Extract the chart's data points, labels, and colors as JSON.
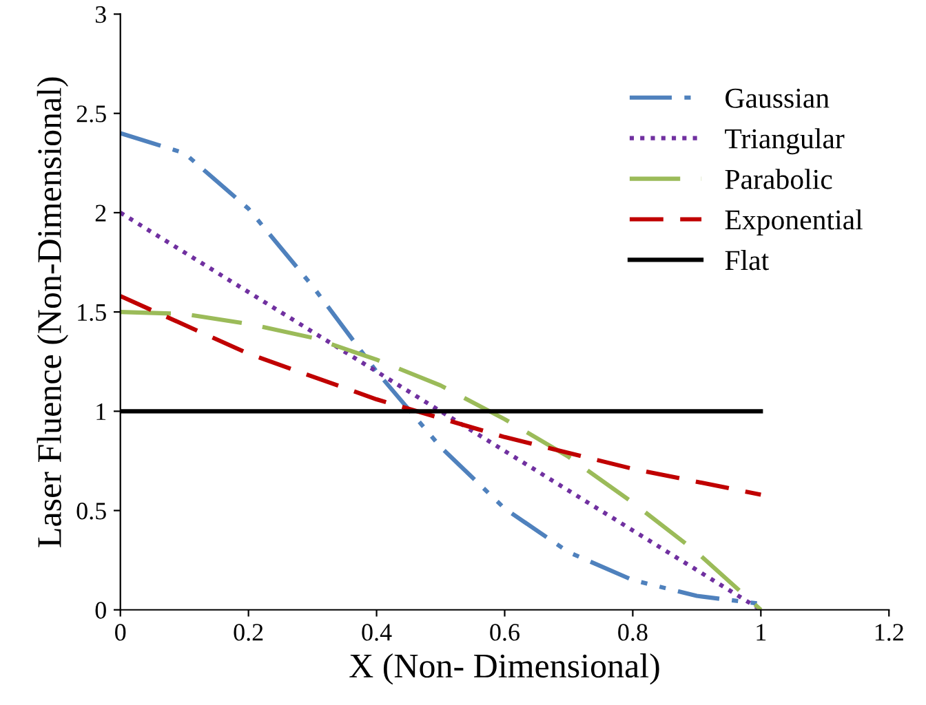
{
  "chart_data": {
    "type": "line",
    "xlabel": "X (Non- Dimensional)",
    "ylabel": "Laser Fluence (Non-Dimensional)",
    "xlim": [
      0,
      1.2
    ],
    "xticks": [
      0,
      0.2,
      0.4,
      0.6,
      0.8,
      1,
      1.2
    ],
    "ylim": [
      0,
      3
    ],
    "yticks": [
      0,
      0.5,
      1,
      1.5,
      2,
      2.5,
      3
    ],
    "grid": false,
    "legend": "top right",
    "marker": "none",
    "series": [
      {
        "name": "Gaussian",
        "color": "#4f81bd",
        "line_style": "dashdot",
        "x": [
          0,
          0.1,
          0.2,
          0.3,
          0.4,
          0.5,
          0.6,
          0.7,
          0.8,
          0.9,
          1.0
        ],
        "values": [
          2.4,
          2.3,
          2.02,
          1.63,
          1.2,
          0.82,
          0.51,
          0.29,
          0.15,
          0.07,
          0.03
        ]
      },
      {
        "name": "Triangular",
        "color": "#7030a0",
        "line_style": "dotted",
        "x": [
          0,
          1.0
        ],
        "values": [
          2.0,
          0.0
        ]
      },
      {
        "name": "Parabolic",
        "color": "#9bbb59",
        "line_style": "dashed",
        "x": [
          0,
          0.1,
          0.2,
          0.3,
          0.4,
          0.5,
          0.6,
          0.7,
          0.8,
          0.9,
          1.0
        ],
        "values": [
          1.5,
          1.49,
          1.44,
          1.37,
          1.26,
          1.13,
          0.96,
          0.77,
          0.54,
          0.29,
          0.0
        ]
      },
      {
        "name": "Exponential",
        "color": "#c00000",
        "line_style": "dashed",
        "x": [
          0,
          0.2,
          0.4,
          0.6,
          0.8,
          1.0
        ],
        "values": [
          1.58,
          1.29,
          1.06,
          0.87,
          0.71,
          0.58
        ]
      },
      {
        "name": "Flat",
        "color": "#000000",
        "line_style": "solid",
        "x": [
          0,
          1.0
        ],
        "values": [
          1.0,
          1.0
        ]
      }
    ]
  }
}
